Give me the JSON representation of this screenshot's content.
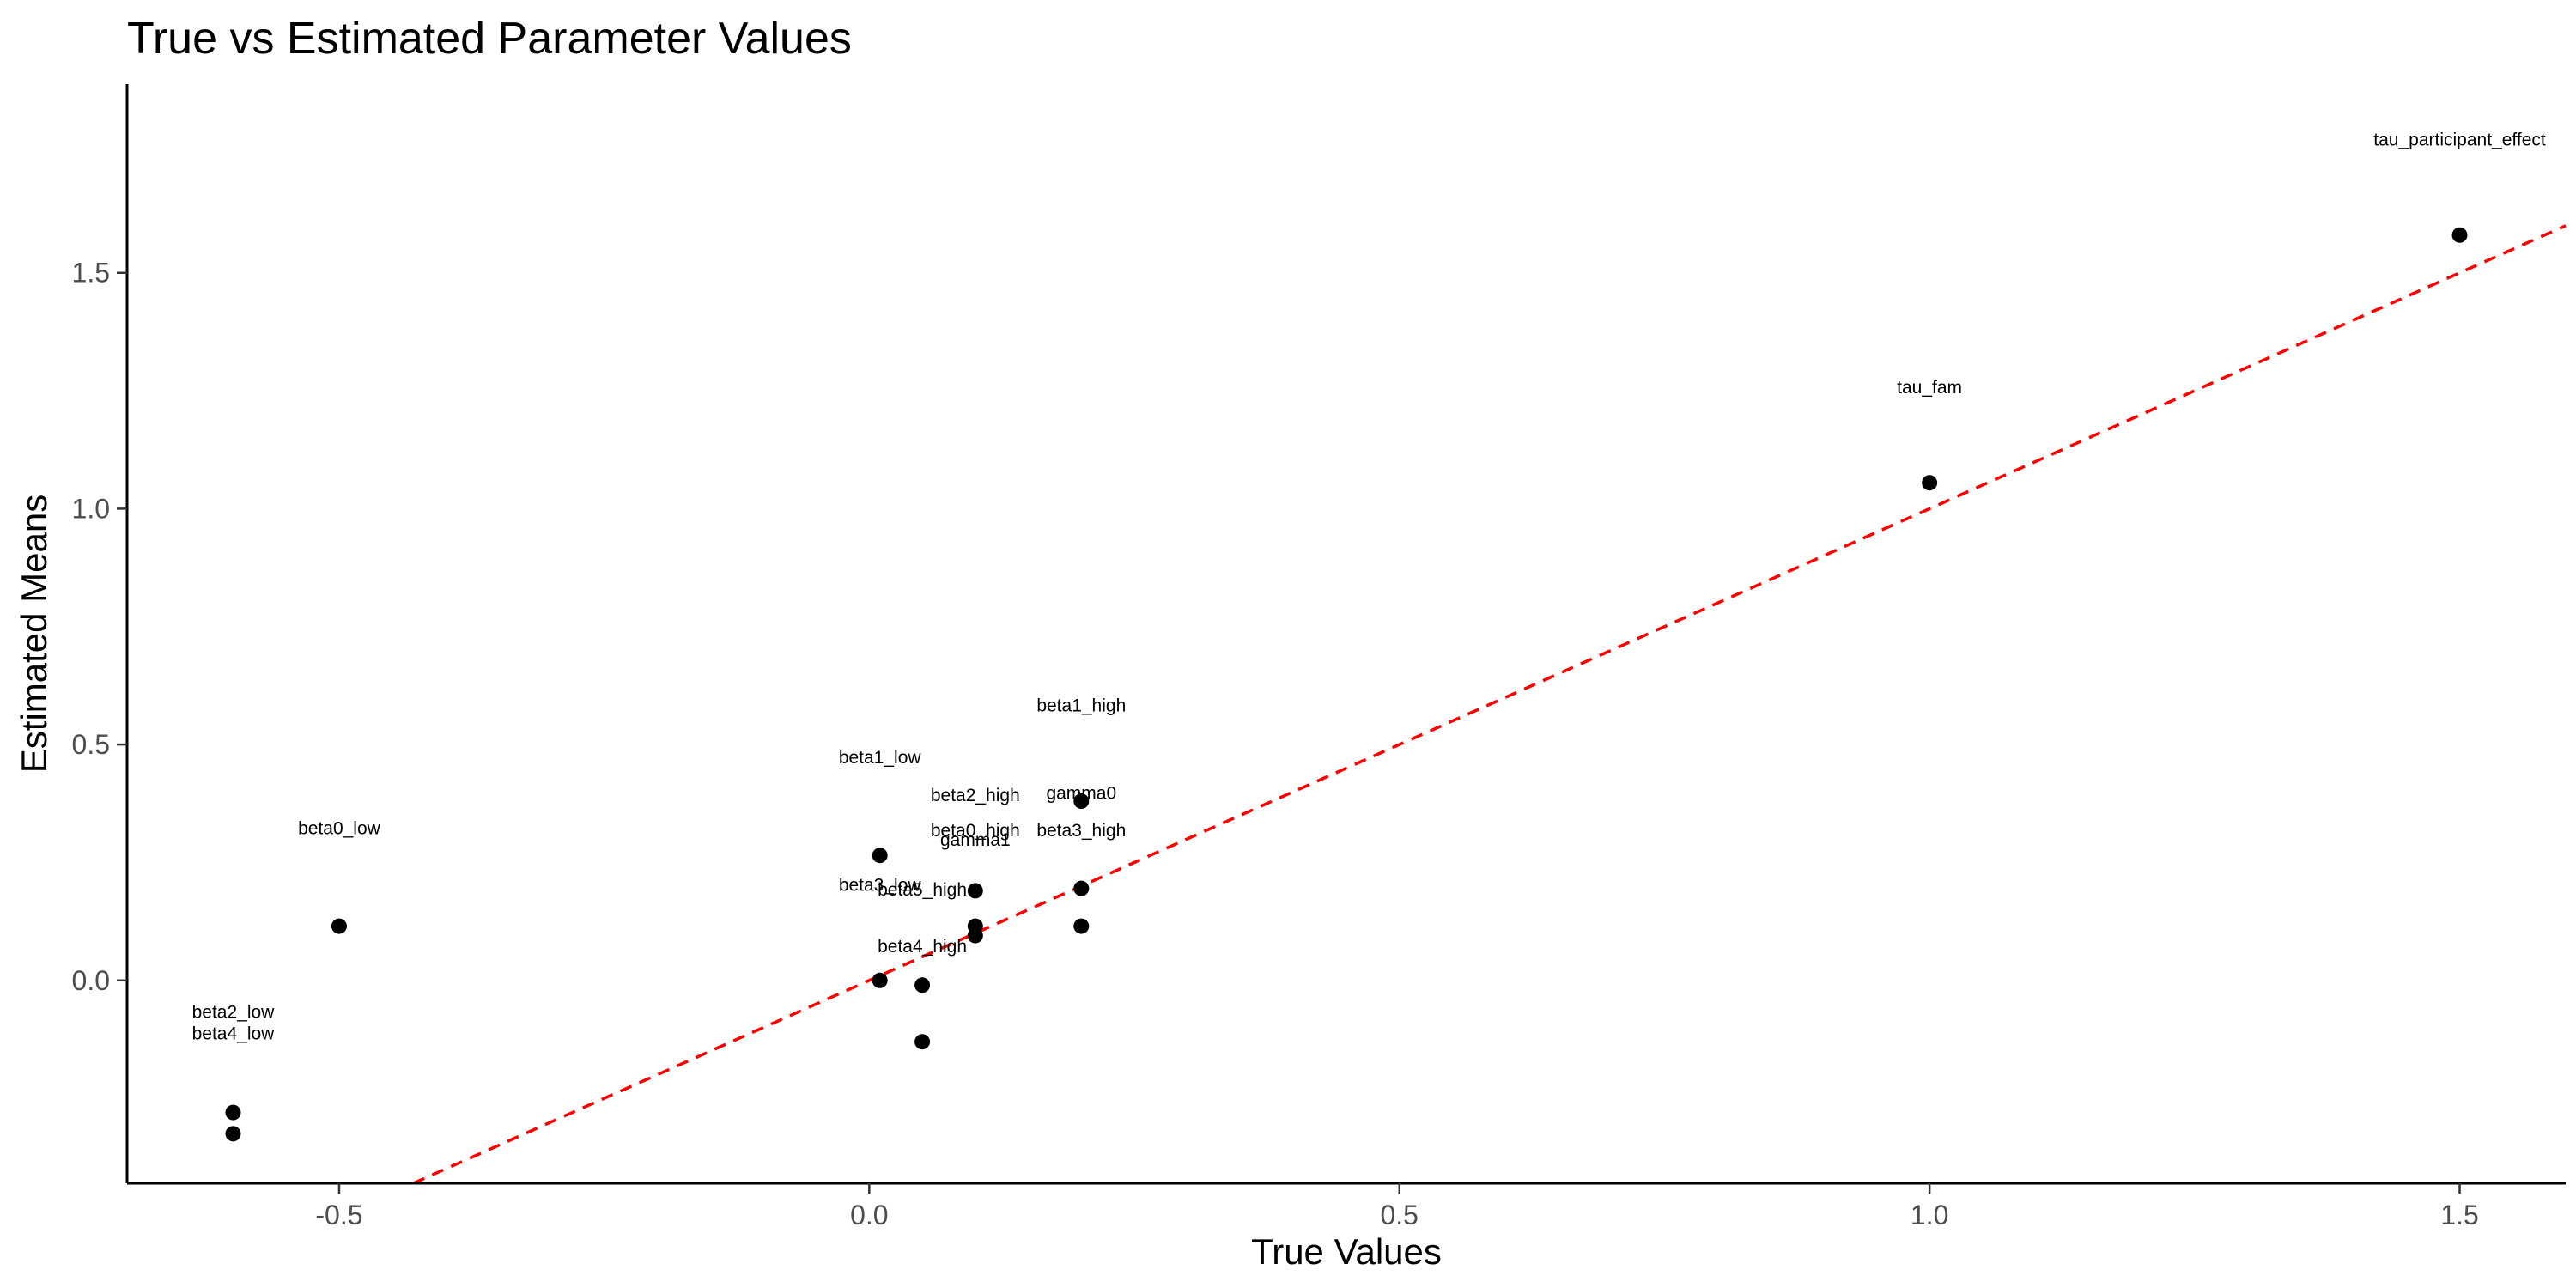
{
  "chart_data": {
    "type": "scatter",
    "title": "True vs Estimated Parameter Values",
    "xlabel": "True Values",
    "ylabel": "Estimated Means",
    "xlim": [
      -0.7,
      1.6
    ],
    "ylim": [
      -0.43,
      1.9
    ],
    "xticks": [
      -0.5,
      0.0,
      0.5,
      1.0,
      1.5
    ],
    "xtick_labels": [
      "-0.5",
      "0.0",
      "0.5",
      "1.0",
      "1.5"
    ],
    "yticks": [
      0.0,
      0.5,
      1.0,
      1.5
    ],
    "ytick_labels": [
      "0.0",
      "0.5",
      "1.0",
      "1.5"
    ],
    "grid": false,
    "reference_line": {
      "slope": 1,
      "intercept": 0,
      "color": "#ff0000",
      "style": "dashed"
    },
    "point_color": "#000000",
    "points": [
      {
        "x": 1.5,
        "y": 1.58,
        "label": "tau_participant_effect",
        "label_y": 1.77
      },
      {
        "x": 1.0,
        "y": 1.055,
        "label": "tau_fam",
        "label_y": 1.245
      },
      {
        "x": 0.2,
        "y": 0.38,
        "label": "beta1_high",
        "label_y": 0.57
      },
      {
        "x": 0.2,
        "y": 0.195,
        "label": "gamma0",
        "label_y": 0.385
      },
      {
        "x": 0.2,
        "y": 0.115,
        "label": "beta3_high",
        "label_y": 0.305
      },
      {
        "x": 0.01,
        "y": 0.265,
        "label": "beta1_low",
        "label_y": 0.46
      },
      {
        "x": 0.1,
        "y": 0.19,
        "label": "beta2_high",
        "label_y": 0.38
      },
      {
        "x": 0.1,
        "y": 0.115,
        "label": "beta0_high",
        "label_y": 0.305
      },
      {
        "x": 0.1,
        "y": 0.095,
        "label": "gamma1",
        "label_y": 0.285
      },
      {
        "x": 0.01,
        "y": 0.0,
        "label": "beta3_low",
        "label_y": 0.19
      },
      {
        "x": 0.05,
        "y": -0.01,
        "label": "beta5_high",
        "label_y": 0.18
      },
      {
        "x": 0.05,
        "y": -0.13,
        "label": "beta4_high",
        "label_y": 0.06
      },
      {
        "x": -0.5,
        "y": 0.115,
        "label": "beta0_low",
        "label_y": 0.31
      },
      {
        "x": -0.6,
        "y": -0.28,
        "label": "beta2_low",
        "label_y": -0.08
      },
      {
        "x": -0.6,
        "y": -0.325,
        "label": "beta4_low",
        "label_y": -0.125
      }
    ]
  }
}
